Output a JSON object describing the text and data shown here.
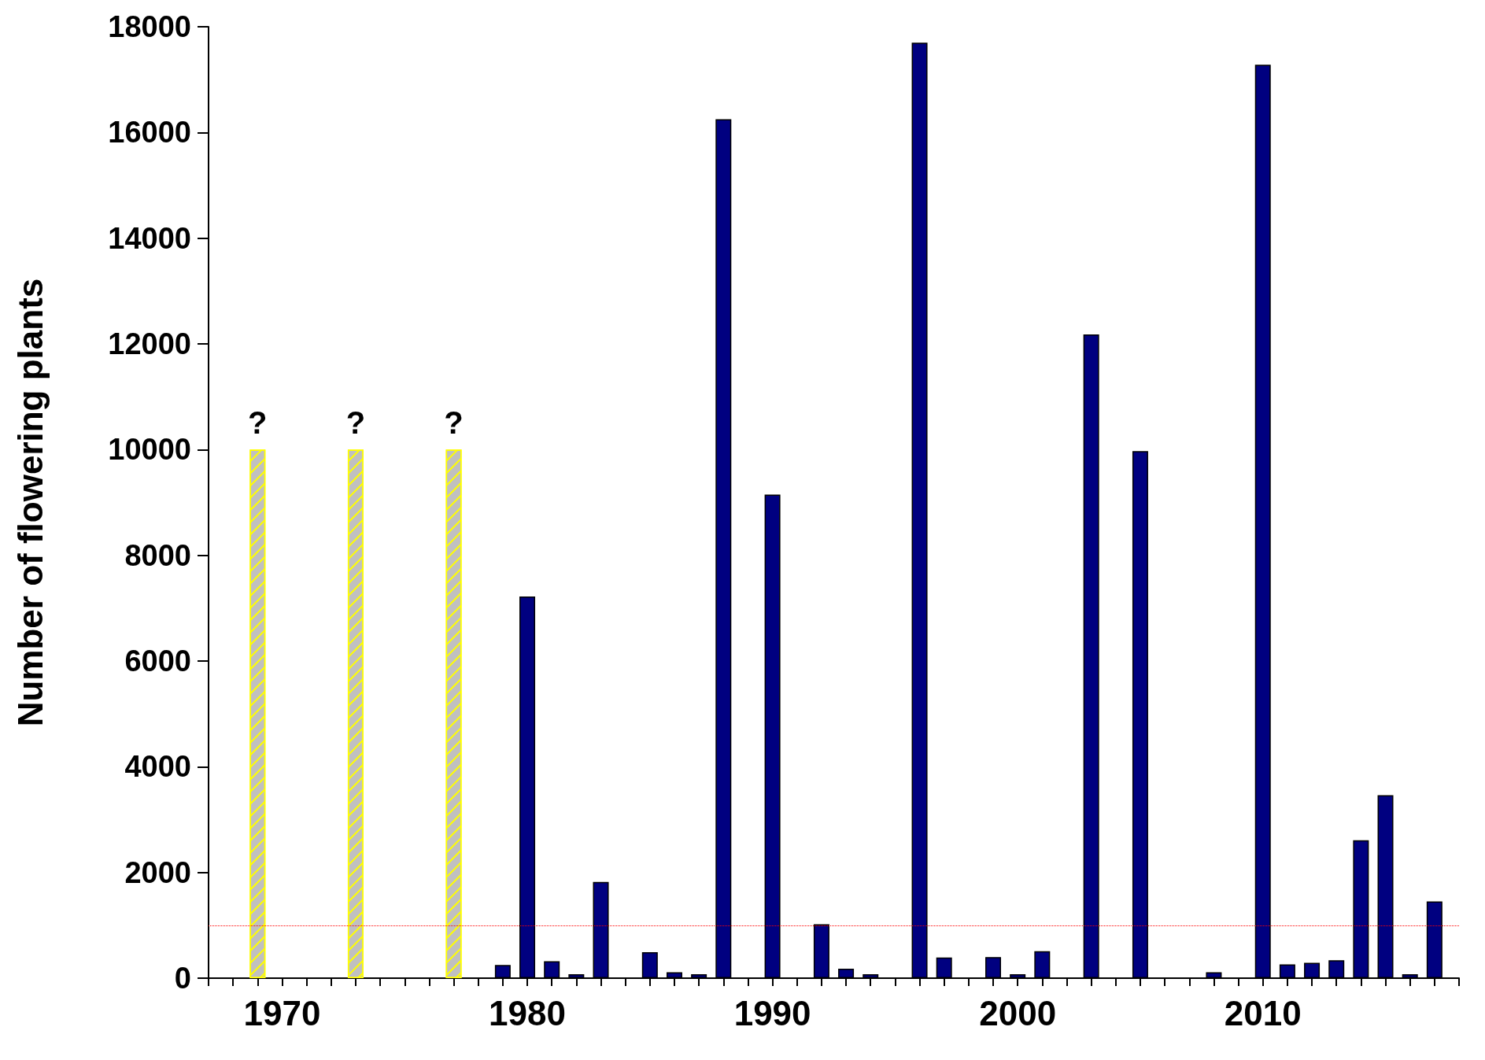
{
  "chart_data": {
    "type": "bar",
    "ylabel": "Number of flowering plants",
    "xlim": [
      1967,
      2018
    ],
    "xticks": [
      1970,
      1980,
      1990,
      2000,
      2010
    ],
    "ylim": [
      0,
      18000
    ],
    "yticks": [
      0,
      2000,
      4000,
      6000,
      8000,
      10000,
      12000,
      14000,
      16000,
      18000
    ],
    "series": [
      {
        "color": "#c0c0c0",
        "x": [
          1969,
          1973,
          1977
        ],
        "values": [
          10000,
          10000,
          10000
        ],
        "value_labels": [
          "?",
          "?",
          "?"
        ]
      },
      {
        "color": "#000080",
        "x": [
          1979,
          1980,
          1981,
          1982,
          1983,
          1985,
          1986,
          1987,
          1988,
          1990,
          1992,
          1993,
          1994,
          1996,
          1997,
          1999,
          2000,
          2001,
          2003,
          2005,
          2008,
          2010,
          2011,
          2012,
          2013,
          2014,
          2015,
          2016,
          2017
        ],
        "values": [
          250,
          7220,
          320,
          20,
          1820,
          490,
          110,
          20,
          16250,
          9150,
          1020,
          180,
          30,
          17700,
          390,
          400,
          30,
          510,
          12180,
          9970,
          110,
          17280,
          260,
          290,
          340,
          2610,
          3460,
          50,
          1450
        ]
      }
    ],
    "ref_lines": [
      {
        "axis": "y",
        "value": 1000,
        "color": "#ff0000",
        "line_style": "dotted"
      }
    ],
    "grid": false
  }
}
